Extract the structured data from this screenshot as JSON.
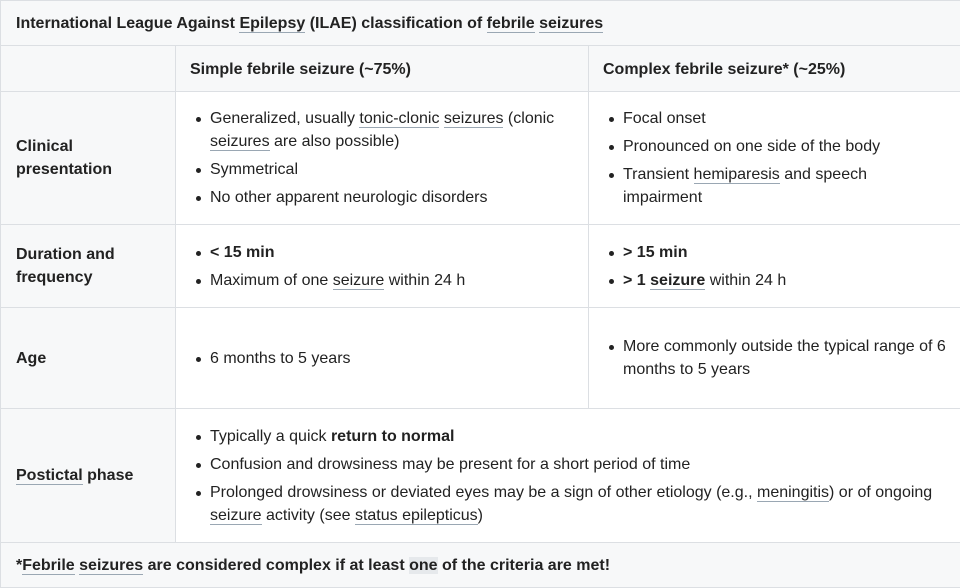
{
  "title": {
    "prefix": "International League Against ",
    "u1": "Epilepsy",
    "mid": " (ILAE) classification of ",
    "u2": "febrile",
    "sp": " ",
    "u3": "seizures"
  },
  "columns": {
    "simple": "Simple febrile seizure (~75%)",
    "complex": "Complex febrile seizure* (~25%)"
  },
  "rows": {
    "clinical": {
      "label": "Clinical presentation",
      "simple": {
        "b1": {
          "t1": "Generalized, usually ",
          "u1": "tonic-clonic",
          "sp": " ",
          "u2": "seizures",
          "t2": " (clonic ",
          "u3": "seizures",
          "t3": " are also possible)"
        },
        "b2": "Symmetrical",
        "b3": "No other apparent neurologic disorders"
      },
      "complex": {
        "b1": "Focal onset",
        "b2": "Pronounced on one side of the body",
        "b3": {
          "t1": "Transient ",
          "u1": "hemiparesis",
          "t2": " and speech impairment"
        }
      }
    },
    "duration": {
      "label": "Duration and frequency",
      "simple": {
        "b1": "< 15 min",
        "b2": {
          "t1": "Maximum of one ",
          "u1": "seizure",
          "t2": " within 24 h"
        }
      },
      "complex": {
        "b1": "> 15 min",
        "b2": {
          "bold": "> 1 ",
          "u1": "seizure",
          "t2": " within 24 h"
        }
      }
    },
    "age": {
      "label": "Age",
      "simple": "6 months to 5 years",
      "complex": "More commonly outside the typical range of 6 months to 5 years"
    },
    "postictal": {
      "label_u": "Postictal",
      "label_rest": " phase",
      "b1": {
        "t1": "Typically a quick ",
        "bold": "return to normal"
      },
      "b2": "Confusion and drowsiness may be present for a short period of time",
      "b3": {
        "t1": "Prolonged drowsiness or deviated eyes may be a sign of other etiology (e.g., ",
        "u1": "meningitis",
        "t2": ") or of ongoing ",
        "u2": "seizure",
        "t3": " activity (see ",
        "u3": "status epilepticus",
        "t4": ")"
      }
    }
  },
  "footer": {
    "t1": "*",
    "u1": "Febrile",
    "sp": " ",
    "u2": "seizures",
    "t2": " are considered complex if at least ",
    "hl": "one",
    "t3": " of the criteria are met!"
  }
}
